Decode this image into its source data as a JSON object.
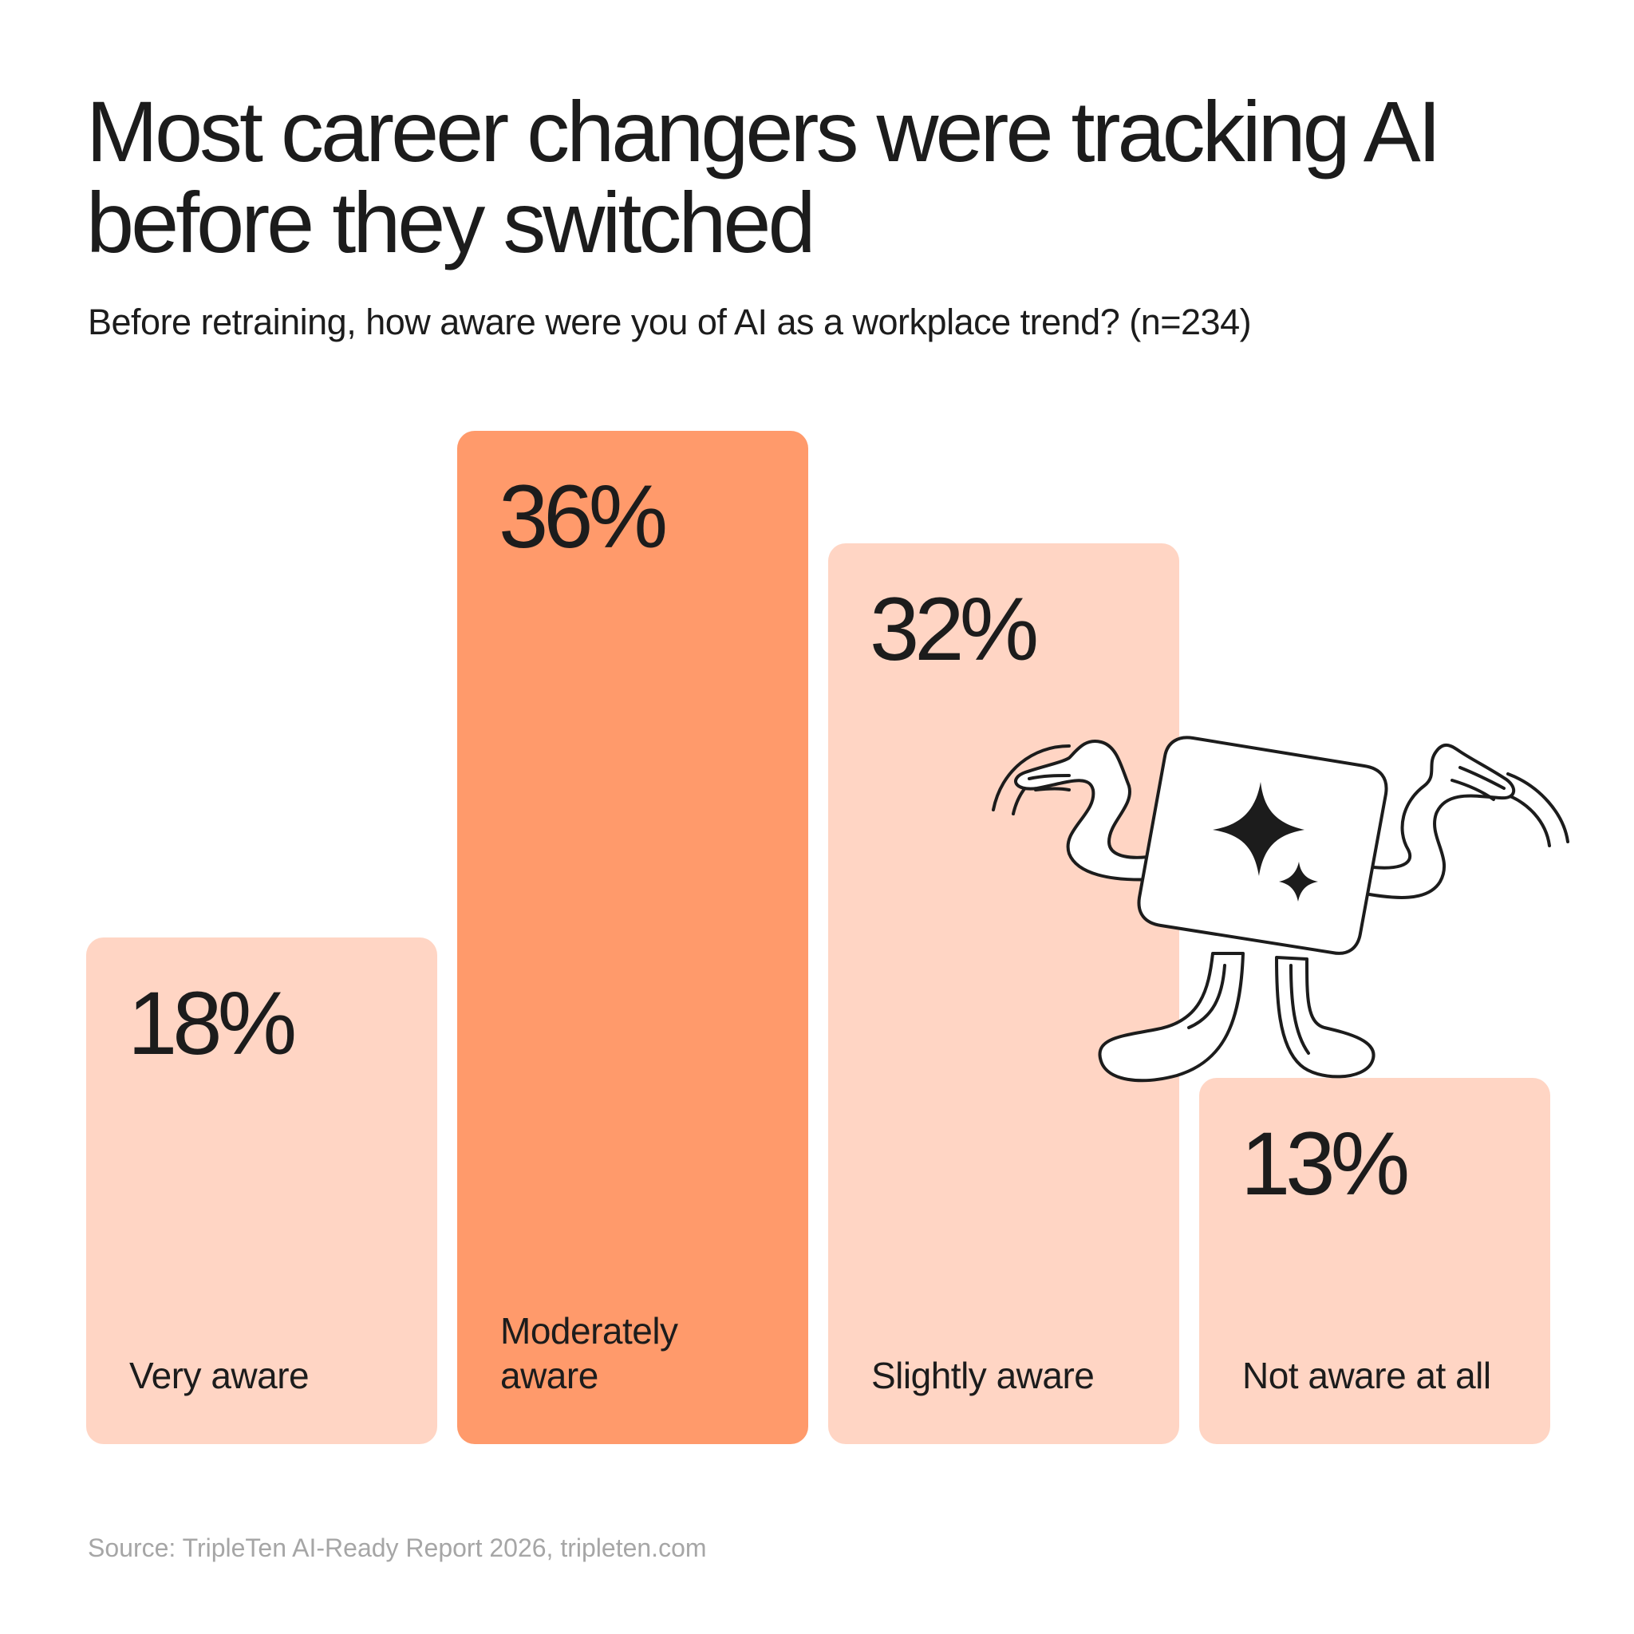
{
  "title": "Most career changers were tracking AI before they switched",
  "subtitle": "Before retraining, how aware were you of AI as a workplace trend? (n=234)",
  "source": "Source: TripleTen AI-Ready Report 2026, tripleten.com",
  "colors": {
    "highlight": "#ff9a6b",
    "base": "#ffd5c4",
    "text": "#1c1c1c",
    "source_text": "#a6a6a6"
  },
  "chart_data": {
    "type": "bar",
    "title": "Most career changers were tracking AI before they switched",
    "subtitle": "Before retraining, how aware were you of AI as a workplace trend? (n=234)",
    "categories": [
      "Very aware",
      "Moderately aware",
      "Slightly aware",
      "Not aware at all"
    ],
    "values": [
      18,
      36,
      32,
      13
    ],
    "value_labels": [
      "18%",
      "36%",
      "32%",
      "13%"
    ],
    "highlighted_category": "Moderately aware",
    "ylim": [
      0,
      36
    ],
    "grid": false,
    "legend": "none",
    "xlabel": "",
    "ylabel": ""
  },
  "mascot": {
    "icon": "sparkle-cube-mascot-icon",
    "description_icon": "sparkle-icon"
  }
}
